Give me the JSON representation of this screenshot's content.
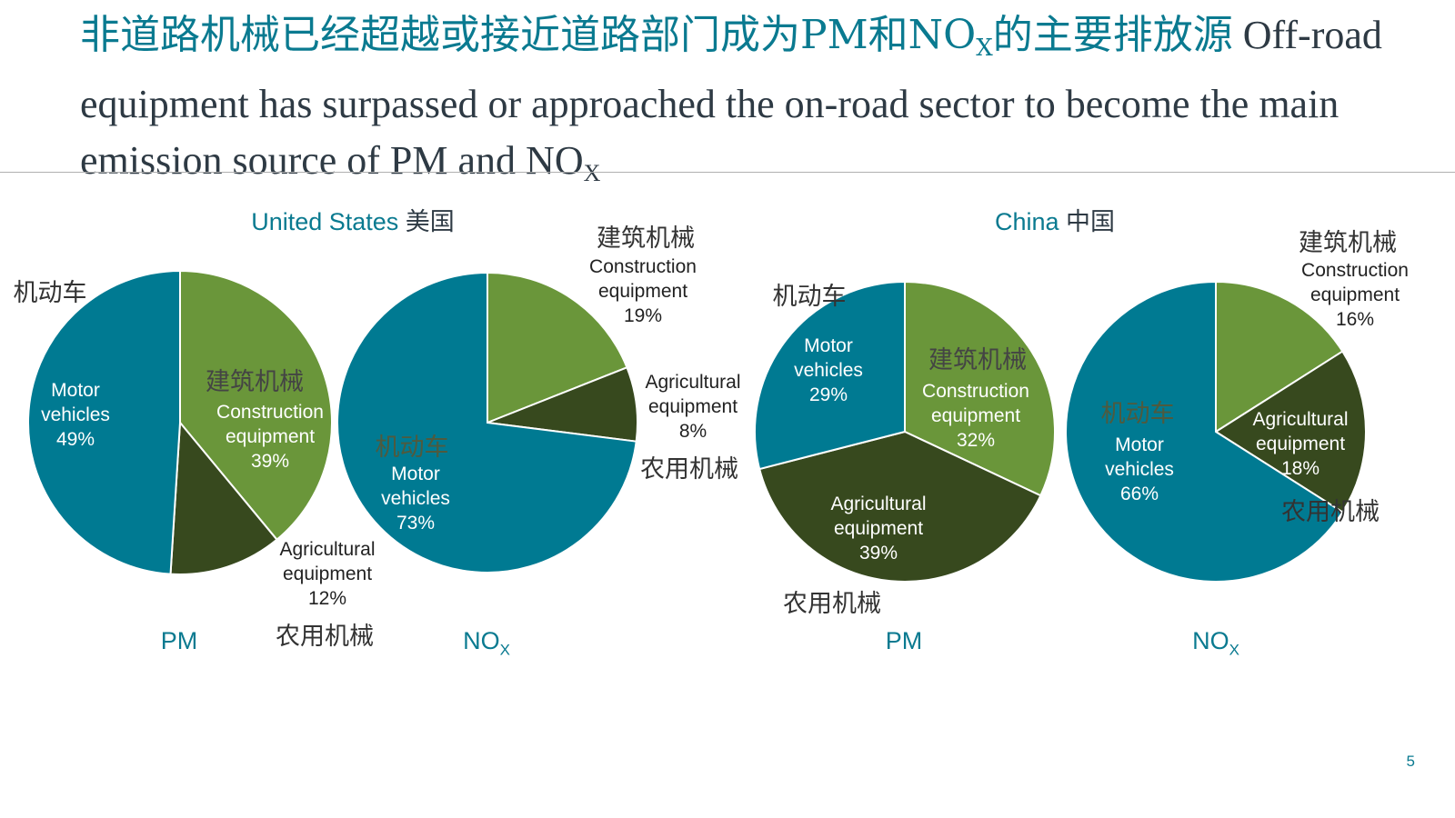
{
  "title": {
    "zh_part1": "非道路机械已经超越或接近道路部门成为PM和NO",
    "zh_sub": "X",
    "zh_part2": "的主要排放源",
    "en": "Off-road equipment has surpassed or approached the on-road sector to become the main emission source of PM and NO",
    "en_sub": "X"
  },
  "colors": {
    "construction": "#6a963a",
    "agricultural": "#37491e",
    "motor": "#007a92",
    "accent": "#0a7a90"
  },
  "page_number": "5",
  "chart_data": [
    {
      "type": "pie",
      "country": "United States",
      "country_zh": "美国",
      "pollutant": "PM",
      "pollutant_sub": "",
      "slices": [
        {
          "name": "Construction equipment",
          "zh": "建筑机械",
          "value": 39,
          "label": "39%"
        },
        {
          "name": "Agricultural equipment",
          "zh": "农用机械",
          "value": 12,
          "label": "12%"
        },
        {
          "name": "Motor vehicles",
          "zh": "机动车",
          "value": 49,
          "label": "49%"
        }
      ]
    },
    {
      "type": "pie",
      "country": "United States",
      "country_zh": "美国",
      "pollutant": "NO",
      "pollutant_sub": "X",
      "slices": [
        {
          "name": "Construction equipment",
          "zh": "建筑机械",
          "value": 19,
          "label": "19%"
        },
        {
          "name": "Agricultural equipment",
          "zh": "农用机械",
          "value": 8,
          "label": "8%"
        },
        {
          "name": "Motor vehicles",
          "zh": "机动车",
          "value": 73,
          "label": "73%"
        }
      ]
    },
    {
      "type": "pie",
      "country": "China",
      "country_zh": "中国",
      "pollutant": "PM",
      "pollutant_sub": "",
      "slices": [
        {
          "name": "Construction equipment",
          "zh": "建筑机械",
          "value": 32,
          "label": "32%"
        },
        {
          "name": "Agricultural equipment",
          "zh": "农用机械",
          "value": 39,
          "label": "39%"
        },
        {
          "name": "Motor vehicles",
          "zh": "机动车",
          "value": 29,
          "label": "29%"
        }
      ]
    },
    {
      "type": "pie",
      "country": "China",
      "country_zh": "中国",
      "pollutant": "NO",
      "pollutant_sub": "X",
      "slices": [
        {
          "name": "Construction equipment",
          "zh": "建筑机械",
          "value": 16,
          "label": "16%"
        },
        {
          "name": "Agricultural equipment",
          "zh": "农用机械",
          "value": 18,
          "label": "18%"
        },
        {
          "name": "Motor vehicles",
          "zh": "机动车",
          "value": 66,
          "label": "66%"
        }
      ]
    }
  ],
  "labels": {
    "construction_1": "Construction",
    "construction_2": "equipment",
    "agricultural_1": "Agricultural",
    "agricultural_2": "equipment",
    "motor_1": "Motor",
    "motor_2": "vehicles"
  }
}
